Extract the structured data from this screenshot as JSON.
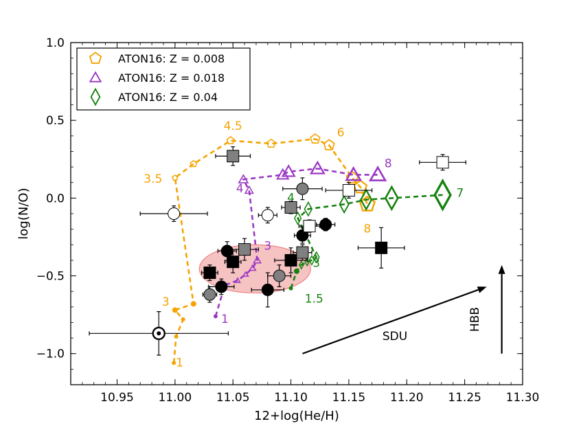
{
  "chart_data": {
    "type": "scatter",
    "xlabel": "12+log(He/H)",
    "ylabel": "log(N/O)",
    "xlim": [
      10.91,
      11.3
    ],
    "ylim": [
      -1.2,
      1.0
    ],
    "xticks": [
      "10.95",
      "11.00",
      "11.05",
      "11.10",
      "11.15",
      "11.20",
      "11.25",
      "11.30"
    ],
    "yticks": [
      "1.0",
      "0.5",
      "0.0",
      "−0.5",
      "−1.0"
    ],
    "grid": false,
    "legend_position": "top-left",
    "series": [
      {
        "name": "ATON16: Z = 0.008",
        "color": "#f5a300",
        "marker": "pentagon",
        "points": [
          [
            10.999,
            -1.06
          ],
          [
            11.001,
            -0.89
          ],
          [
            11.007,
            -0.78
          ],
          [
            11.0,
            -0.72
          ],
          [
            11.016,
            -0.68
          ],
          [
            11.0,
            0.13
          ],
          [
            11.016,
            0.22
          ],
          [
            11.048,
            0.37
          ],
          [
            11.083,
            0.35
          ],
          [
            11.121,
            0.38
          ],
          [
            11.133,
            0.34
          ],
          [
            11.153,
            0.13
          ],
          [
            11.16,
            0.07
          ],
          [
            11.166,
            -0.04
          ]
        ],
        "sizes": [
          3,
          3,
          3,
          4,
          4,
          5,
          6,
          7,
          8,
          9,
          10,
          11,
          12,
          14
        ],
        "mass_labels": [
          {
            "text": "1",
            "x": 11.004,
            "y": -1.06
          },
          {
            "text": "3",
            "x": 10.992,
            "y": -0.67
          },
          {
            "text": "3.5",
            "x": 10.981,
            "y": 0.12
          },
          {
            "text": "4.5",
            "x": 11.05,
            "y": 0.46
          },
          {
            "text": "6",
            "x": 11.143,
            "y": 0.42
          },
          {
            "text": "8",
            "x": 11.166,
            "y": -0.2
          }
        ]
      },
      {
        "name": "ATON16: Z = 0.018",
        "color": "#9a38c4",
        "marker": "triangle",
        "points": [
          [
            11.035,
            -0.76
          ],
          [
            11.043,
            -0.56
          ],
          [
            11.054,
            -0.53
          ],
          [
            11.061,
            -0.49
          ],
          [
            11.067,
            -0.45
          ],
          [
            11.071,
            -0.4
          ],
          [
            11.064,
            0.05
          ],
          [
            11.059,
            0.12
          ],
          [
            11.093,
            0.15
          ],
          [
            11.098,
            0.17
          ],
          [
            11.123,
            0.19
          ],
          [
            11.154,
            0.15
          ],
          [
            11.175,
            0.15
          ]
        ],
        "sizes": [
          3,
          4,
          5,
          5,
          6,
          7,
          8,
          9,
          11,
          12,
          13,
          14,
          15
        ],
        "mass_labels": [
          {
            "text": "1",
            "x": 11.043,
            "y": -0.78
          },
          {
            "text": "3",
            "x": 11.08,
            "y": -0.31
          },
          {
            "text": "4",
            "x": 11.056,
            "y": 0.06
          },
          {
            "text": "8",
            "x": 11.184,
            "y": 0.22
          }
        ]
      },
      {
        "name": "ATON16: Z = 0.04",
        "color": "#16820f",
        "marker": "diamond",
        "points": [
          [
            11.1,
            -0.58
          ],
          [
            11.105,
            -0.47
          ],
          [
            11.109,
            -0.43
          ],
          [
            11.114,
            -0.41
          ],
          [
            11.118,
            -0.4
          ],
          [
            11.122,
            -0.38
          ],
          [
            11.106,
            -0.13
          ],
          [
            11.115,
            -0.07
          ],
          [
            11.146,
            -0.04
          ],
          [
            11.165,
            -0.01
          ],
          [
            11.187,
            0.0
          ],
          [
            11.231,
            0.02
          ]
        ],
        "sizes": [
          3,
          4,
          5,
          5,
          6,
          7,
          8,
          9,
          11,
          13,
          15,
          19
        ],
        "mass_labels": [
          {
            "text": "1.5",
            "x": 11.12,
            "y": -0.65
          },
          {
            "text": "3",
            "x": 11.122,
            "y": -0.42
          },
          {
            "text": "4",
            "x": 11.1,
            "y": 0.0
          },
          {
            "text": "7",
            "x": 11.246,
            "y": 0.03
          }
        ]
      }
    ],
    "observations": [
      {
        "x": 11.03,
        "y": -0.62,
        "xerr": 0.006,
        "yerr": 0.05,
        "marker": "circle",
        "fill": "gray"
      },
      {
        "x": 11.04,
        "y": -0.57,
        "xerr": 0.011,
        "yerr": 0.05,
        "marker": "circle",
        "fill": "black"
      },
      {
        "x": 11.045,
        "y": -0.34,
        "xerr": 0.008,
        "yerr": 0.06,
        "marker": "circle",
        "fill": "black"
      },
      {
        "x": 11.08,
        "y": -0.59,
        "xerr": 0.014,
        "yerr": 0.11,
        "marker": "circle",
        "fill": "black"
      },
      {
        "x": 11.09,
        "y": -0.5,
        "xerr": 0.01,
        "yerr": 0.07,
        "marker": "circle",
        "fill": "gray"
      },
      {
        "x": 11.11,
        "y": -0.24,
        "xerr": 0.007,
        "yerr": 0.05,
        "marker": "circle",
        "fill": "black"
      },
      {
        "x": 11.13,
        "y": -0.17,
        "xerr": 0.008,
        "yerr": 0.04,
        "marker": "circle",
        "fill": "black"
      },
      {
        "x": 11.11,
        "y": 0.06,
        "xerr": 0.017,
        "yerr": 0.07,
        "marker": "circle",
        "fill": "gray"
      },
      {
        "x": 11.08,
        "y": -0.11,
        "xerr": 0.008,
        "yerr": 0.05,
        "marker": "circle",
        "fill": "white"
      },
      {
        "x": 10.999,
        "y": -0.1,
        "xerr": 0.029,
        "yerr": 0.05,
        "marker": "circle",
        "fill": "white"
      },
      {
        "x": 11.03,
        "y": -0.48,
        "xerr": 0.007,
        "yerr": 0.05,
        "marker": "square",
        "fill": "black"
      },
      {
        "x": 11.05,
        "y": -0.41,
        "xerr": 0.007,
        "yerr": 0.07,
        "marker": "square",
        "fill": "black"
      },
      {
        "x": 11.1,
        "y": -0.4,
        "xerr": 0.014,
        "yerr": 0.08,
        "marker": "square",
        "fill": "black"
      },
      {
        "x": 11.178,
        "y": -0.32,
        "xerr": 0.02,
        "yerr": 0.13,
        "marker": "square",
        "fill": "black"
      },
      {
        "x": 11.06,
        "y": -0.33,
        "xerr": 0.012,
        "yerr": 0.07,
        "marker": "square",
        "fill": "gray"
      },
      {
        "x": 11.11,
        "y": -0.35,
        "xerr": 0.008,
        "yerr": 0.05,
        "marker": "square",
        "fill": "gray"
      },
      {
        "x": 11.1,
        "y": -0.06,
        "xerr": 0.008,
        "yerr": 0.04,
        "marker": "square",
        "fill": "gray"
      },
      {
        "x": 11.05,
        "y": 0.27,
        "xerr": 0.015,
        "yerr": 0.06,
        "marker": "square",
        "fill": "gray"
      },
      {
        "x": 11.116,
        "y": -0.18,
        "xerr": 0.009,
        "yerr": 0.04,
        "marker": "square",
        "fill": "white"
      },
      {
        "x": 11.15,
        "y": 0.05,
        "xerr": 0.02,
        "yerr": 0.05,
        "marker": "square",
        "fill": "white"
      },
      {
        "x": 11.231,
        "y": 0.23,
        "xerr": 0.02,
        "yerr": 0.05,
        "marker": "square",
        "fill": "white"
      },
      {
        "x": 10.986,
        "y": -0.87,
        "xerr": 0.06,
        "yerr": 0.14,
        "marker": "sun",
        "fill": "white"
      }
    ],
    "ellipse": {
      "cx": 11.069,
      "cy": -0.455,
      "rx": 0.048,
      "ry": 0.155,
      "color": "#f08080"
    },
    "arrows": [
      {
        "label": "SDU",
        "from": [
          11.11,
          -1.0
        ],
        "to": [
          11.269,
          -0.57
        ]
      },
      {
        "label": "HBB",
        "from": [
          11.282,
          -1.0
        ],
        "to": [
          11.282,
          -0.43
        ]
      }
    ],
    "colors": {
      "frame": "#000000",
      "gray_marker": "#808080",
      "ellipse_fill": "#f5b8b8"
    }
  }
}
